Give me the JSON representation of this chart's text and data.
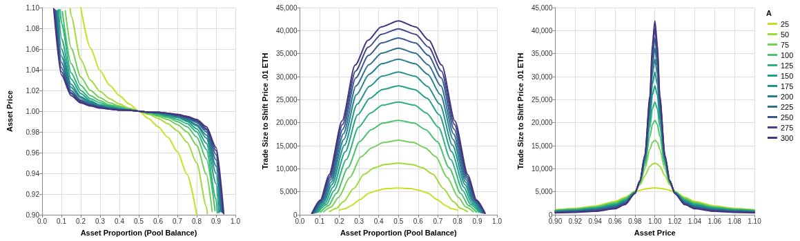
{
  "chart_data": [
    {
      "type": "line",
      "xlabel": "Asset Proportion (Pool Balance)",
      "ylabel": "Asset Price",
      "xlim": [
        0,
        1
      ],
      "ylim": [
        0.9,
        1.1
      ],
      "grid": true,
      "marker": "none",
      "xticks": [
        {
          "value": 0,
          "label": "0.0"
        },
        {
          "value": 0.1,
          "label": "0.1"
        },
        {
          "value": 0.2,
          "label": "0.2"
        },
        {
          "value": 0.3,
          "label": "0.3"
        },
        {
          "value": 0.4,
          "label": "0.4"
        },
        {
          "value": 0.5,
          "label": "0.5"
        },
        {
          "value": 0.6,
          "label": "0.6"
        },
        {
          "value": 0.7,
          "label": "0.7"
        },
        {
          "value": 0.8,
          "label": "0.8"
        },
        {
          "value": 0.9,
          "label": "0.9"
        },
        {
          "value": 1,
          "label": "1.0"
        }
      ],
      "yticks": [
        {
          "value": 0.9,
          "label": "0.90"
        },
        {
          "value": 0.92,
          "label": "0.92"
        },
        {
          "value": 0.94,
          "label": "0.94"
        },
        {
          "value": 0.96,
          "label": "0.96"
        },
        {
          "value": 0.98,
          "label": "0.98"
        },
        {
          "value": 1,
          "label": "1.00"
        },
        {
          "value": 1.02,
          "label": "1.02"
        },
        {
          "value": 1.04,
          "label": "1.04"
        },
        {
          "value": 1.06,
          "label": "1.06"
        },
        {
          "value": 1.08,
          "label": "1.08"
        },
        {
          "value": 1.1,
          "label": "1.10"
        }
      ],
      "series": [
        {
          "color": "#c8e020",
          "x": [
            0.2,
            0.25,
            0.3,
            0.35,
            0.4,
            0.45,
            0.5,
            0.55,
            0.6,
            0.65,
            0.7,
            0.75,
            0.8
          ],
          "values": [
            1.1,
            1.061,
            1.039,
            1.025,
            1.015,
            1.007,
            1,
            0.993,
            0.985,
            0.975,
            0.961,
            0.939,
            0.9
          ]
        },
        {
          "color": "#a0da39",
          "x": [
            0.145,
            0.15,
            0.2,
            0.25,
            0.3,
            0.35,
            0.4,
            0.45,
            0.5,
            0.55,
            0.6,
            0.65,
            0.7,
            0.75,
            0.8,
            0.85,
            0.855
          ],
          "values": [
            1.099,
            1.092,
            1.05,
            1.03,
            1.019,
            1.012,
            1.007,
            1.003,
            1,
            0.997,
            0.993,
            0.988,
            0.981,
            0.97,
            0.95,
            0.908,
            0.901
          ]
        },
        {
          "color": "#73d056",
          "x": [
            0.12,
            0.15,
            0.2,
            0.25,
            0.3,
            0.35,
            0.4,
            0.45,
            0.5,
            0.55,
            0.6,
            0.65,
            0.7,
            0.75,
            0.8,
            0.85,
            0.88
          ],
          "values": [
            1.097,
            1.061,
            1.033,
            1.02,
            1.013,
            1.008,
            1.005,
            1.002,
            1,
            0.998,
            0.995,
            0.992,
            0.987,
            0.98,
            0.967,
            0.939,
            0.903
          ]
        },
        {
          "color": "#4ac16d",
          "x": [
            0.105,
            0.15,
            0.2,
            0.25,
            0.3,
            0.35,
            0.4,
            0.45,
            0.5,
            0.55,
            0.6,
            0.65,
            0.7,
            0.75,
            0.8,
            0.85,
            0.895
          ],
          "values": [
            1.096,
            1.046,
            1.025,
            1.015,
            1.01,
            1.006,
            1.004,
            1.002,
            1,
            0.998,
            0.996,
            0.994,
            0.99,
            0.985,
            0.975,
            0.954,
            0.904
          ]
        },
        {
          "color": "#2db27d",
          "x": [
            0.093,
            0.1,
            0.15,
            0.2,
            0.25,
            0.3,
            0.35,
            0.4,
            0.45,
            0.5,
            0.55,
            0.6,
            0.65,
            0.7,
            0.75,
            0.8,
            0.85,
            0.9,
            0.907
          ],
          "values": [
            1.098,
            1.085,
            1.037,
            1.02,
            1.012,
            1.008,
            1.005,
            1.003,
            1.001,
            1,
            0.999,
            0.997,
            0.995,
            0.992,
            0.988,
            0.98,
            0.963,
            0.915,
            0.902
          ]
        },
        {
          "color": "#1fa187",
          "x": [
            0.085,
            0.1,
            0.15,
            0.2,
            0.25,
            0.3,
            0.35,
            0.4,
            0.45,
            0.5,
            0.55,
            0.6,
            0.65,
            0.7,
            0.75,
            0.8,
            0.85,
            0.9,
            0.915
          ],
          "values": [
            1.098,
            1.07,
            1.031,
            1.017,
            1.01,
            1.006,
            1.004,
            1.002,
            1.001,
            1,
            0.999,
            0.998,
            0.996,
            0.994,
            0.99,
            0.983,
            0.969,
            0.93,
            0.902
          ]
        },
        {
          "color": "#21918c",
          "x": [
            0.079,
            0.1,
            0.15,
            0.2,
            0.25,
            0.3,
            0.35,
            0.4,
            0.45,
            0.5,
            0.55,
            0.6,
            0.65,
            0.7,
            0.75,
            0.8,
            0.85,
            0.9,
            0.921
          ],
          "values": [
            1.097,
            1.06,
            1.026,
            1.014,
            1.009,
            1.006,
            1.004,
            1.002,
            1.001,
            1,
            0.999,
            0.998,
            0.996,
            0.994,
            0.991,
            0.986,
            0.974,
            0.94,
            0.903
          ]
        },
        {
          "color": "#277f8e",
          "x": [
            0.074,
            0.1,
            0.15,
            0.2,
            0.25,
            0.3,
            0.35,
            0.4,
            0.45,
            0.5,
            0.55,
            0.6,
            0.65,
            0.7,
            0.75,
            0.8,
            0.85,
            0.9,
            0.926
          ],
          "values": [
            1.097,
            1.053,
            1.023,
            1.013,
            1.008,
            1.005,
            1.003,
            1.002,
            1.001,
            1,
            0.999,
            0.998,
            0.997,
            0.995,
            0.992,
            0.987,
            0.977,
            0.947,
            0.903
          ]
        },
        {
          "color": "#2e6e8e",
          "x": [
            0.07,
            0.1,
            0.15,
            0.2,
            0.25,
            0.3,
            0.35,
            0.4,
            0.45,
            0.5,
            0.55,
            0.6,
            0.65,
            0.7,
            0.75,
            0.8,
            0.85,
            0.9,
            0.93
          ],
          "values": [
            1.097,
            1.047,
            1.02,
            1.011,
            1.007,
            1.004,
            1.003,
            1.002,
            1.001,
            1,
            0.999,
            0.998,
            0.997,
            0.996,
            0.993,
            0.989,
            0.98,
            0.953,
            0.903
          ]
        },
        {
          "color": "#365c8d",
          "x": [
            0.066,
            0.1,
            0.15,
            0.2,
            0.25,
            0.3,
            0.35,
            0.4,
            0.45,
            0.5,
            0.55,
            0.6,
            0.65,
            0.7,
            0.75,
            0.8,
            0.85,
            0.9,
            0.934
          ],
          "values": [
            1.098,
            1.042,
            1.018,
            1.01,
            1.006,
            1.004,
            1.002,
            1.001,
            1.001,
            1,
            0.999,
            0.999,
            0.998,
            0.996,
            0.994,
            0.99,
            0.982,
            0.958,
            0.902
          ]
        },
        {
          "color": "#404688",
          "x": [
            0.063,
            0.1,
            0.15,
            0.2,
            0.25,
            0.3,
            0.35,
            0.4,
            0.45,
            0.5,
            0.55,
            0.6,
            0.65,
            0.7,
            0.75,
            0.8,
            0.85,
            0.9,
            0.937
          ],
          "values": [
            1.098,
            1.038,
            1.017,
            1.009,
            1.006,
            1.004,
            1.002,
            1.001,
            1.001,
            1,
            0.999,
            0.999,
            0.998,
            0.996,
            0.994,
            0.991,
            0.983,
            0.962,
            0.902
          ]
        },
        {
          "color": "#46327e",
          "x": [
            0.06,
            0.1,
            0.15,
            0.2,
            0.25,
            0.3,
            0.35,
            0.4,
            0.45,
            0.5,
            0.55,
            0.6,
            0.65,
            0.7,
            0.75,
            0.8,
            0.85,
            0.9,
            0.94
          ],
          "values": [
            1.099,
            1.035,
            1.015,
            1.008,
            1.005,
            1.003,
            1.002,
            1.001,
            1.001,
            1,
            0.999,
            0.999,
            0.998,
            0.997,
            0.995,
            0.992,
            0.985,
            0.965,
            0.901
          ]
        }
      ]
    },
    {
      "type": "line",
      "xlabel": "Asset Proportion (Pool Balance)",
      "ylabel": "Trade Size to Shift Price .01 ETH",
      "xlim": [
        0,
        1
      ],
      "ylim": [
        0,
        45000
      ],
      "grid": true,
      "marker": "none",
      "xticks": [
        {
          "value": 0,
          "label": "0.0"
        },
        {
          "value": 0.1,
          "label": "0.1"
        },
        {
          "value": 0.2,
          "label": "0.2"
        },
        {
          "value": 0.3,
          "label": "0.3"
        },
        {
          "value": 0.4,
          "label": "0.4"
        },
        {
          "value": 0.5,
          "label": "0.5"
        },
        {
          "value": 0.6,
          "label": "0.6"
        },
        {
          "value": 0.7,
          "label": "0.7"
        },
        {
          "value": 0.8,
          "label": "0.8"
        },
        {
          "value": 0.9,
          "label": "0.9"
        },
        {
          "value": 1,
          "label": "1.0"
        }
      ],
      "yticks": [
        0,
        {
          "value": 5000,
          "label": "5,000"
        },
        {
          "value": 10000,
          "label": "10,000"
        },
        {
          "value": 15000,
          "label": "15,000"
        },
        {
          "value": 20000,
          "label": "20,000"
        },
        {
          "value": 25000,
          "label": "25,000"
        },
        {
          "value": 30000,
          "label": "30,000"
        },
        {
          "value": 35000,
          "label": "35,000"
        },
        {
          "value": 40000,
          "label": "40,000"
        },
        {
          "value": 45000,
          "label": "45,000"
        }
      ],
      "series": [
        {
          "color": "#c8e020",
          "x": [
            0.2,
            0.23,
            0.26,
            0.305,
            0.35,
            0.395,
            0.44,
            0.5,
            0.56,
            0.605,
            0.65,
            0.695,
            0.74,
            0.77,
            0.8
          ],
          "values": [
            1000,
            1300,
            2000,
            3300,
            4700,
            5300,
            5700,
            5800,
            5700,
            5300,
            4700,
            3300,
            2000,
            1300,
            1000
          ]
        },
        {
          "color": "#a0da39",
          "x": [
            0.15,
            0.185,
            0.22,
            0.273,
            0.325,
            0.378,
            0.43,
            0.5,
            0.57,
            0.622,
            0.675,
            0.728,
            0.78,
            0.815,
            0.85
          ],
          "values": [
            700,
            1400,
            2800,
            5700,
            8800,
            10200,
            10900,
            11200,
            10900,
            10200,
            8800,
            5700,
            2800,
            1400,
            700
          ]
        },
        {
          "color": "#73d056",
          "x": [
            0.12,
            0.158,
            0.196,
            0.253,
            0.31,
            0.367,
            0.424,
            0.5,
            0.576,
            0.633,
            0.69,
            0.747,
            0.804,
            0.842,
            0.88
          ],
          "values": [
            650,
            1700,
            3800,
            8100,
            12600,
            14600,
            15700,
            16200,
            15700,
            14600,
            12600,
            8100,
            3800,
            1700,
            650
          ]
        },
        {
          "color": "#4ac16d",
          "x": [
            0.105,
            0.145,
            0.184,
            0.243,
            0.303,
            0.362,
            0.421,
            0.5,
            0.579,
            0.638,
            0.697,
            0.757,
            0.816,
            0.855,
            0.895
          ],
          "values": [
            600,
            2000,
            4600,
            10200,
            15900,
            18500,
            19900,
            20500,
            19900,
            18500,
            15900,
            10200,
            4600,
            2000,
            600
          ]
        },
        {
          "color": "#2db27d",
          "x": [
            0.093,
            0.134,
            0.174,
            0.235,
            0.297,
            0.358,
            0.419,
            0.5,
            0.581,
            0.642,
            0.703,
            0.765,
            0.826,
            0.866,
            0.907
          ],
          "values": [
            550,
            2200,
            5300,
            12000,
            19000,
            22100,
            23800,
            24500,
            23800,
            22100,
            19000,
            12000,
            5300,
            2200,
            550
          ]
        },
        {
          "color": "#1fa187",
          "x": [
            0.085,
            0.127,
            0.168,
            0.23,
            0.293,
            0.355,
            0.417,
            0.5,
            0.583,
            0.645,
            0.707,
            0.77,
            0.832,
            0.873,
            0.915
          ],
          "values": [
            500,
            2400,
            6000,
            13700,
            21700,
            25300,
            27200,
            28000,
            27200,
            25300,
            21700,
            13700,
            6000,
            2400,
            500
          ]
        },
        {
          "color": "#21918c",
          "x": [
            0.079,
            0.121,
            0.163,
            0.226,
            0.29,
            0.353,
            0.416,
            0.5,
            0.584,
            0.647,
            0.71,
            0.774,
            0.837,
            0.879,
            0.921
          ],
          "values": [
            450,
            2600,
            6600,
            15100,
            24000,
            27900,
            30100,
            31000,
            30100,
            27900,
            24000,
            15100,
            6600,
            2600,
            450
          ]
        },
        {
          "color": "#277f8e",
          "x": [
            0.074,
            0.117,
            0.159,
            0.223,
            0.287,
            0.351,
            0.415,
            0.5,
            0.585,
            0.649,
            0.713,
            0.777,
            0.841,
            0.883,
            0.926
          ],
          "values": [
            420,
            2800,
            7100,
            16400,
            26100,
            30500,
            32800,
            33800,
            32800,
            30500,
            26100,
            16400,
            7100,
            2800,
            420
          ]
        },
        {
          "color": "#2e6e8e",
          "x": [
            0.07,
            0.113,
            0.156,
            0.221,
            0.285,
            0.35,
            0.414,
            0.5,
            0.586,
            0.65,
            0.715,
            0.779,
            0.844,
            0.887,
            0.93
          ],
          "values": [
            390,
            2900,
            7600,
            17600,
            28000,
            32600,
            35100,
            36200,
            35100,
            32600,
            28000,
            17600,
            7600,
            2900,
            390
          ]
        },
        {
          "color": "#365c8d",
          "x": [
            0.066,
            0.109,
            0.153,
            0.218,
            0.283,
            0.348,
            0.413,
            0.5,
            0.587,
            0.652,
            0.717,
            0.782,
            0.847,
            0.891,
            0.934
          ],
          "values": [
            360,
            3000,
            8000,
            18600,
            29700,
            34600,
            37300,
            38400,
            37300,
            34600,
            29700,
            18600,
            8000,
            3000,
            360
          ]
        },
        {
          "color": "#404688",
          "x": [
            0.063,
            0.107,
            0.15,
            0.216,
            0.282,
            0.347,
            0.413,
            0.5,
            0.587,
            0.653,
            0.718,
            0.784,
            0.85,
            0.893,
            0.937
          ],
          "values": [
            330,
            3100,
            8300,
            19600,
            31200,
            36400,
            39200,
            40400,
            39200,
            36400,
            31200,
            19600,
            8300,
            3100,
            330
          ]
        },
        {
          "color": "#46327e",
          "x": [
            0.06,
            0.104,
            0.148,
            0.214,
            0.28,
            0.346,
            0.412,
            0.5,
            0.588,
            0.654,
            0.72,
            0.786,
            0.852,
            0.896,
            0.94
          ],
          "values": [
            300,
            3200,
            8700,
            20400,
            32500,
            37900,
            40800,
            42100,
            40800,
            37900,
            32500,
            20400,
            8700,
            3200,
            300
          ]
        }
      ]
    },
    {
      "type": "line",
      "xlabel": "Asset Price",
      "ylabel": "Trade Size to Shift Price .01 ETH",
      "legend_title": "A",
      "legend": "right",
      "xlim": [
        0.9,
        1.1
      ],
      "ylim": [
        0,
        45000
      ],
      "grid": true,
      "marker": "none",
      "xticks": [
        {
          "value": 0.9,
          "label": "0.90"
        },
        {
          "value": 0.92,
          "label": "0.92"
        },
        {
          "value": 0.94,
          "label": "0.94"
        },
        {
          "value": 0.96,
          "label": "0.96"
        },
        {
          "value": 0.98,
          "label": "0.98"
        },
        {
          "value": 1,
          "label": "1.00"
        },
        {
          "value": 1.02,
          "label": "1.02"
        },
        {
          "value": 1.04,
          "label": "1.04"
        },
        {
          "value": 1.06,
          "label": "1.06"
        },
        {
          "value": 1.08,
          "label": "1.08"
        },
        {
          "value": 1.1,
          "label": "1.10"
        }
      ],
      "yticks": [
        0,
        {
          "value": 5000,
          "label": "5,000"
        },
        {
          "value": 10000,
          "label": "10,000"
        },
        {
          "value": 15000,
          "label": "15,000"
        },
        {
          "value": 20000,
          "label": "20,000"
        },
        {
          "value": 25000,
          "label": "25,000"
        },
        {
          "value": 30000,
          "label": "30,000"
        },
        {
          "value": 35000,
          "label": "35,000"
        },
        {
          "value": 40000,
          "label": "40,000"
        },
        {
          "value": 45000,
          "label": "45,000"
        }
      ],
      "x": [
        0.9,
        0.92,
        0.94,
        0.96,
        0.97,
        0.98,
        0.985,
        0.99,
        0.995,
        0.9975,
        1,
        1.0025,
        1.005,
        1.01,
        1.015,
        1.02,
        1.03,
        1.04,
        1.06,
        1.08,
        1.1
      ],
      "series": [
        {
          "name": "25",
          "color": "#c8e020",
          "values": [
            1100,
            1400,
            1900,
            2900,
            3800,
            4900,
            5300,
            5600,
            5750,
            5800,
            5800,
            5800,
            5750,
            5600,
            5300,
            4900,
            3800,
            2900,
            1900,
            1400,
            1100
          ]
        },
        {
          "name": "50",
          "color": "#a0da39",
          "values": [
            1040,
            1320,
            1800,
            2750,
            3650,
            5100,
            6500,
            8500,
            10500,
            11000,
            11200,
            11000,
            10500,
            8500,
            6500,
            5100,
            3650,
            2750,
            1800,
            1320,
            1040
          ]
        },
        {
          "name": "75",
          "color": "#73d056",
          "values": [
            970,
            1240,
            1690,
            2610,
            3510,
            5000,
            6800,
            10000,
            14200,
            15700,
            16200,
            15700,
            14200,
            10000,
            6800,
            5000,
            3510,
            2610,
            1690,
            1240,
            970
          ]
        },
        {
          "name": "100",
          "color": "#4ac16d",
          "values": [
            910,
            1160,
            1590,
            2460,
            3360,
            4950,
            6900,
            10800,
            17000,
            19600,
            20500,
            19600,
            17000,
            10800,
            6900,
            4950,
            3360,
            2460,
            1590,
            1160,
            910
          ]
        },
        {
          "name": "125",
          "color": "#2db27d",
          "values": [
            850,
            1080,
            1490,
            2320,
            3220,
            4900,
            7000,
            11300,
            19000,
            23000,
            24500,
            23000,
            19000,
            11300,
            7000,
            4900,
            3220,
            2320,
            1490,
            1080,
            850
          ]
        },
        {
          "name": "150",
          "color": "#1fa187",
          "values": [
            780,
            1000,
            1380,
            2170,
            3070,
            4850,
            7100,
            11700,
            20500,
            26000,
            28000,
            26000,
            20500,
            11700,
            7100,
            4850,
            3070,
            2170,
            1380,
            1000,
            780
          ]
        },
        {
          "name": "175",
          "color": "#21918c",
          "values": [
            720,
            920,
            1280,
            2030,
            2930,
            4800,
            7200,
            12000,
            21800,
            28300,
            31000,
            28300,
            21800,
            12000,
            7200,
            4800,
            2930,
            2030,
            1280,
            920,
            720
          ]
        },
        {
          "name": "200",
          "color": "#277f8e",
          "values": [
            650,
            840,
            1180,
            1880,
            2780,
            4750,
            7250,
            12300,
            22800,
            30500,
            33800,
            30500,
            22800,
            12300,
            7250,
            4750,
            2780,
            1880,
            1180,
            840,
            650
          ]
        },
        {
          "name": "225",
          "color": "#2e6e8e",
          "values": [
            590,
            760,
            1080,
            1740,
            2640,
            4700,
            7300,
            12500,
            23700,
            32300,
            36200,
            32300,
            23700,
            12500,
            7300,
            4700,
            2640,
            1740,
            1080,
            760,
            590
          ]
        },
        {
          "name": "250",
          "color": "#365c8d",
          "values": [
            530,
            680,
            980,
            1590,
            2490,
            4680,
            7350,
            12700,
            24500,
            34000,
            38400,
            34000,
            24500,
            12700,
            7350,
            4680,
            2490,
            1590,
            980,
            680,
            530
          ]
        },
        {
          "name": "275",
          "color": "#404688",
          "values": [
            460,
            600,
            870,
            1450,
            2350,
            4640,
            7400,
            12900,
            25200,
            35600,
            40400,
            35600,
            25200,
            12900,
            7400,
            4640,
            2350,
            1450,
            870,
            600,
            460
          ]
        },
        {
          "name": "300",
          "color": "#46327e",
          "values": [
            400,
            520,
            750,
            1300,
            2200,
            4600,
            7450,
            13000,
            25800,
            37000,
            42100,
            37000,
            25800,
            13000,
            7450,
            4600,
            2200,
            1300,
            750,
            520,
            400
          ]
        }
      ]
    }
  ]
}
